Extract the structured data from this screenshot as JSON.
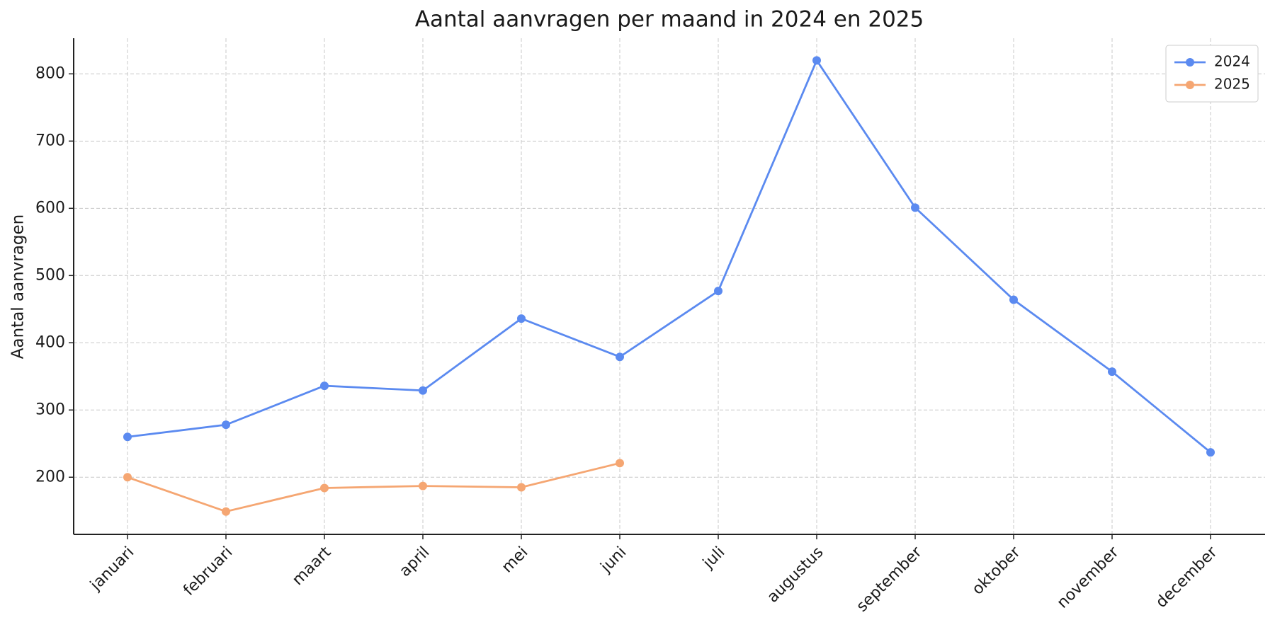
{
  "chart_data": {
    "type": "line",
    "title": "Aantal aanvragen per maand in 2024 en 2025",
    "y_label": "Aantal aanvragen",
    "categories": [
      "januari",
      "februari",
      "maart",
      "april",
      "mei",
      "juni",
      "juli",
      "augustus",
      "september",
      "oktober",
      "november",
      "december"
    ],
    "series": [
      {
        "name": "2024",
        "color": "#5b8af0",
        "values": [
          260,
          278,
          336,
          329,
          436,
          379,
          477,
          820,
          601,
          464,
          357,
          237
        ]
      },
      {
        "name": "2025",
        "color": "#f5a672",
        "values": [
          200,
          149,
          184,
          187,
          185,
          221,
          null,
          null,
          null,
          null,
          null,
          null
        ]
      }
    ],
    "ylim": [
      115,
      853
    ],
    "yticks": [
      200,
      300,
      400,
      500,
      600,
      700,
      800
    ],
    "grid": true,
    "legend": "upper right"
  }
}
